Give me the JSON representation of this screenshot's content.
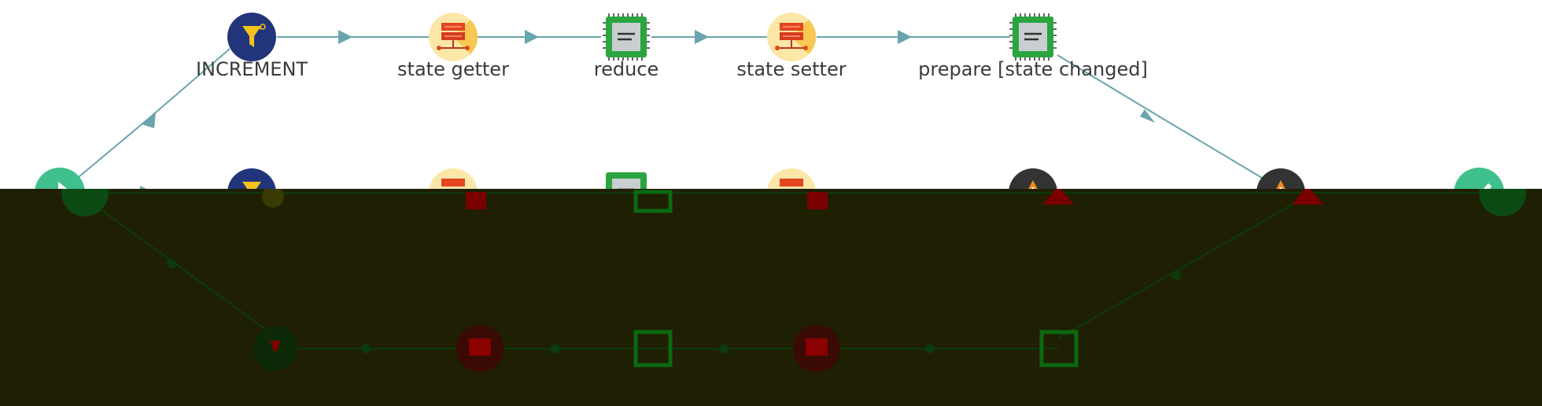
{
  "diagram": {
    "edge_color": "#6aa4ac",
    "overlay_color": "#1f1f03",
    "top_row": [
      {
        "key": "increment",
        "label": "INCREMENT",
        "icon": "funnel-icon"
      },
      {
        "key": "state_getter_1",
        "label": "state getter",
        "icon": "server-icon"
      },
      {
        "key": "reduce",
        "label": "reduce",
        "icon": "cpu-chip-icon"
      },
      {
        "key": "state_setter",
        "label": "state setter",
        "icon": "server-icon"
      },
      {
        "key": "prepare",
        "label": "prepare [state changed]",
        "icon": "cpu-chip-icon"
      }
    ],
    "middle_row": [
      {
        "key": "start",
        "icon": "arrow-right-icon"
      },
      {
        "key": "filter_2",
        "icon": "funnel-icon"
      },
      {
        "key": "state_getter_2",
        "icon": "server-icon"
      },
      {
        "key": "chip_2",
        "icon": "cpu-chip-icon"
      },
      {
        "key": "server_2",
        "icon": "server-icon"
      },
      {
        "key": "warning_1",
        "icon": "warning-icon"
      },
      {
        "key": "warning_2",
        "icon": "warning-icon"
      },
      {
        "key": "end",
        "icon": "check-icon"
      }
    ],
    "bottom_row": [
      {
        "key": "filter_3",
        "icon": "funnel-icon"
      },
      {
        "key": "server_3",
        "icon": "server-icon"
      },
      {
        "key": "chip_3",
        "icon": "cpu-chip-icon"
      },
      {
        "key": "server_4",
        "icon": "server-icon"
      },
      {
        "key": "chip_4",
        "icon": "cpu-chip-icon"
      }
    ]
  }
}
